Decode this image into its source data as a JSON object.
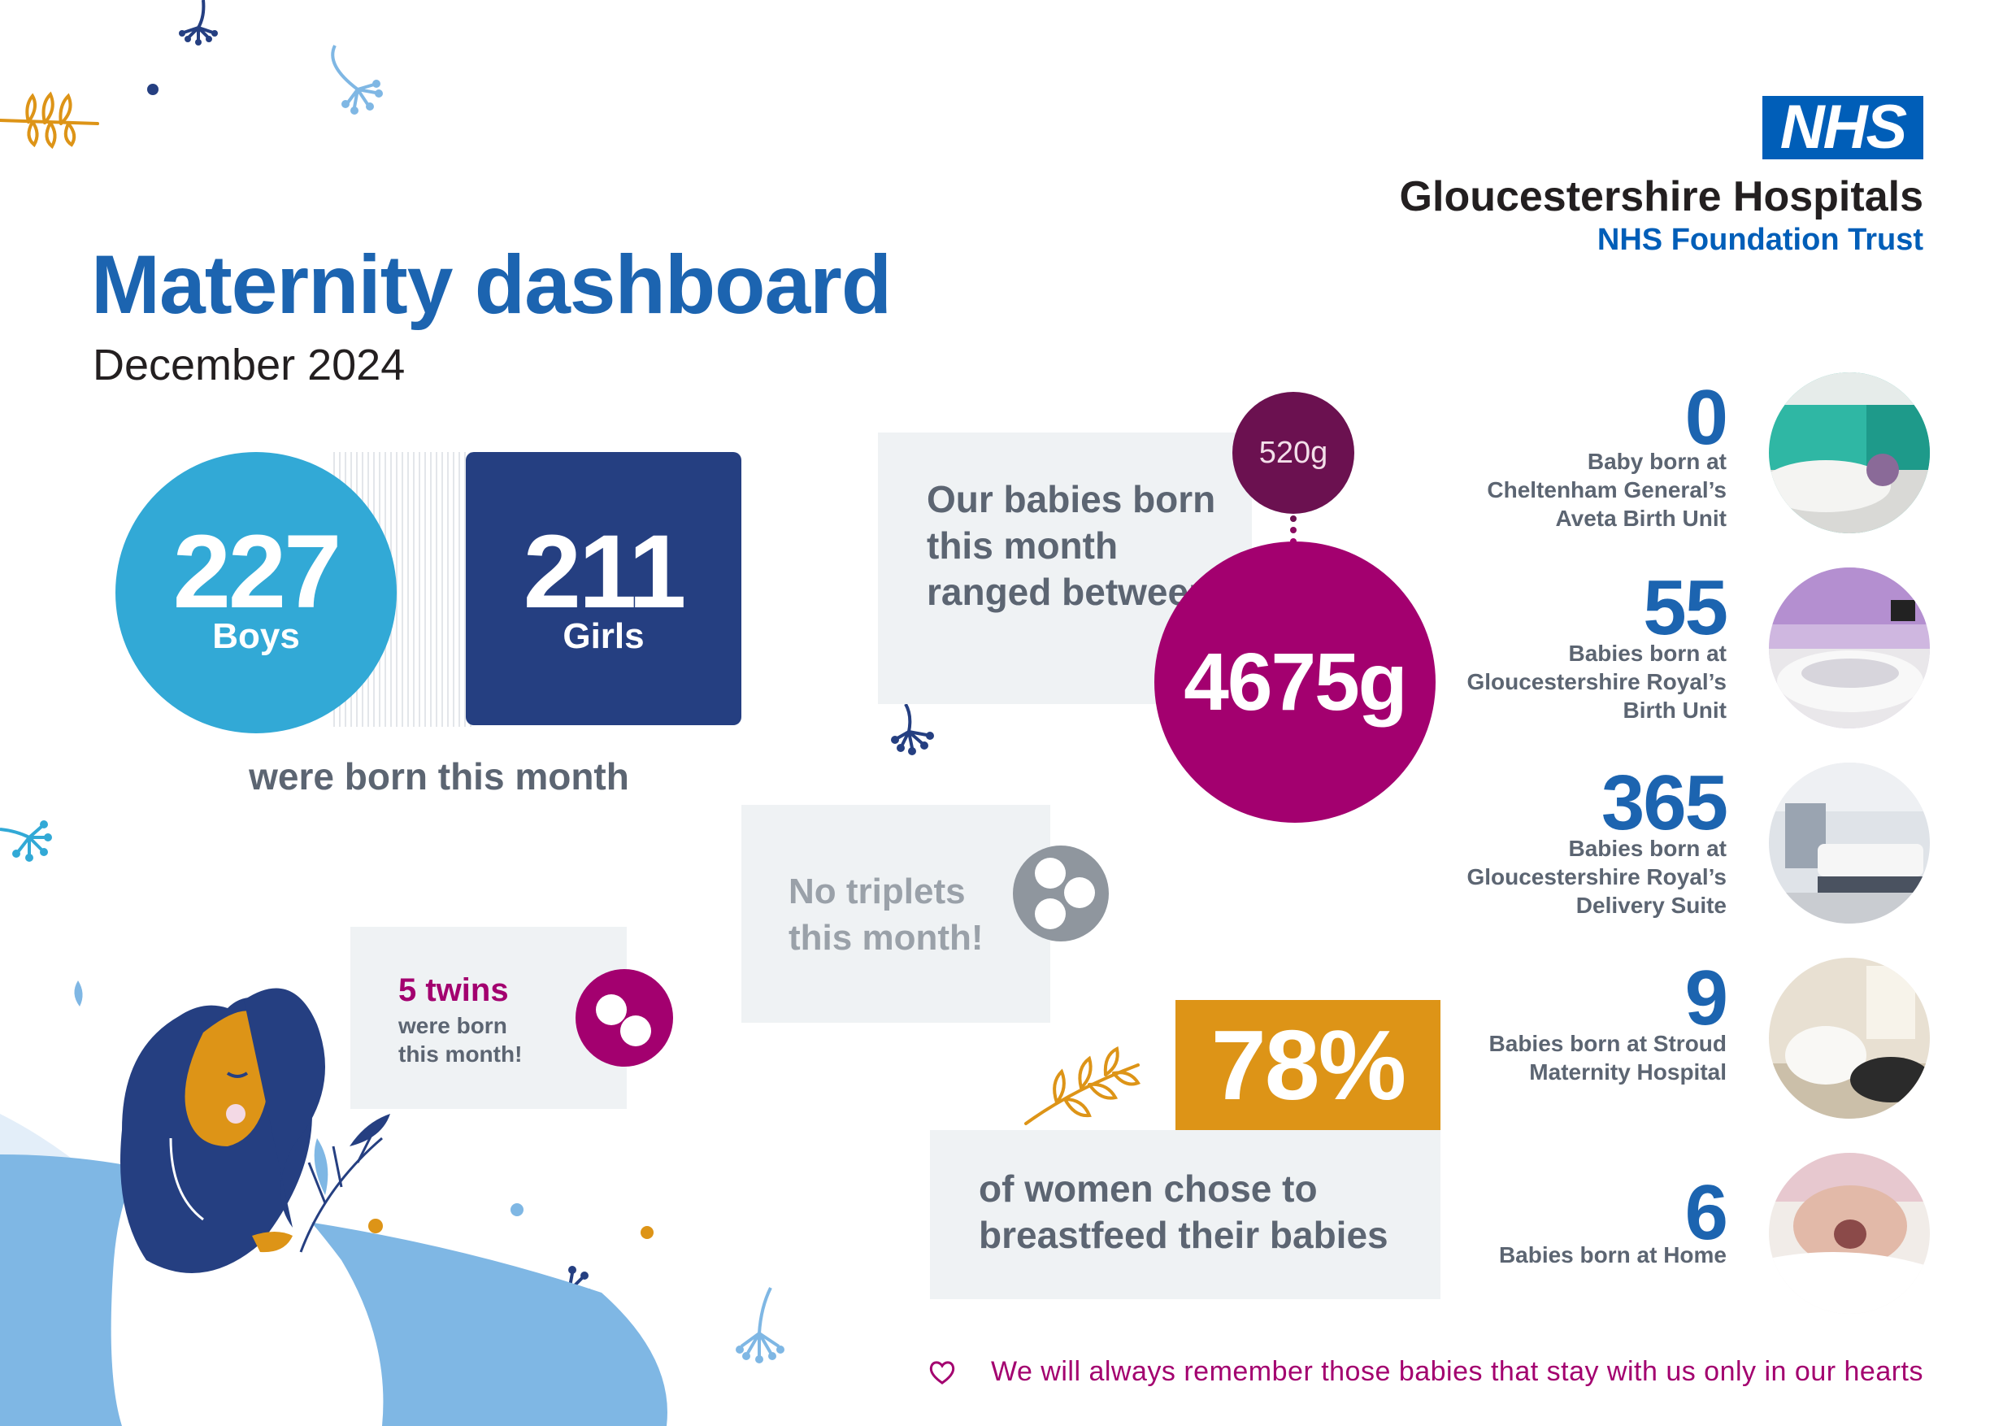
{
  "header": {
    "logo_text": "NHS",
    "trust_name": "Gloucestershire Hospitals",
    "trust_subtitle": "NHS Foundation Trust",
    "title": "Maternity dashboard",
    "period": "December 2024"
  },
  "births": {
    "boys_count": "227",
    "boys_label": "Boys",
    "girls_count": "211",
    "girls_label": "Girls",
    "caption": "were born this month"
  },
  "weights": {
    "text": "Our babies born this month ranged between:",
    "min": "520g",
    "max": "4675g"
  },
  "triplets": {
    "text": "No triplets this month!"
  },
  "twins": {
    "title": "5 twins",
    "subtitle": "were born this month!"
  },
  "breastfeeding": {
    "percent": "78%",
    "text": "of women chose to breastfeed their babies"
  },
  "locations": [
    {
      "count": "0",
      "label": "Baby born at Cheltenham General’s Aveta Birth Unit"
    },
    {
      "count": "55",
      "label": "Babies born at Gloucestershire Royal’s Birth Unit"
    },
    {
      "count": "365",
      "label": "Babies born at Gloucestershire Royal’s Delivery Suite"
    },
    {
      "count": "9",
      "label": "Babies born at Stroud Maternity Hospital"
    },
    {
      "count": "6",
      "label": "Babies born at Home"
    }
  ],
  "footer": {
    "text": "We will always remember those babies that stay with us only in our hearts"
  },
  "colors": {
    "nhs_blue": "#005eb8",
    "title_blue": "#1c64b0",
    "boys": "#32a9d6",
    "girls": "#253f81",
    "magenta": "#a3006f",
    "plum": "#6b1150",
    "amber": "#dd9417",
    "panel_grey": "#eff2f4",
    "text_grey": "#5c6572"
  }
}
